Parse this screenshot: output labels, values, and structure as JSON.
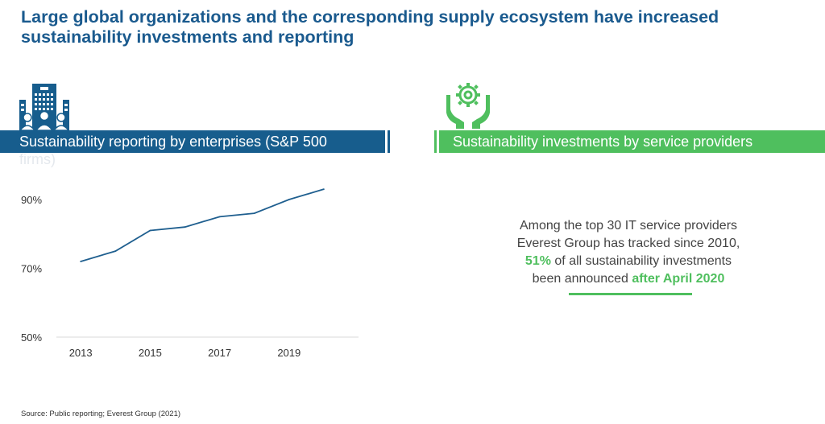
{
  "title": "Large global organizations and the corresponding supply ecosystem have increased sustainability investments and reporting",
  "left_panel": {
    "label": "Sustainability reporting by enterprises (S&P 500",
    "label_overflow": "firms)",
    "icon": "building-people-icon",
    "color": "#175d8d"
  },
  "right_panel": {
    "label": "Sustainability investments by service providers",
    "icon": "hands-gear-icon",
    "color": "#4fbf5e",
    "callout": {
      "line1": "Among the top 30 IT service providers",
      "line2": "Everest Group has tracked since 2010,",
      "highlight_pct": "51%",
      "line3_rest": " of all sustainability investments",
      "line4_pre": "been announced ",
      "highlight_date": "after April 2020"
    }
  },
  "chart_data": {
    "type": "line",
    "title": "",
    "xlabel": "",
    "ylabel": "",
    "x": [
      2013,
      2014,
      2015,
      2016,
      2017,
      2018,
      2019,
      2020
    ],
    "series": [
      {
        "values": [
          72,
          75,
          81,
          82,
          85,
          86,
          90,
          93
        ]
      }
    ],
    "ylim": [
      50,
      90
    ],
    "y_ticks": [
      "50%",
      "70%",
      "90%"
    ],
    "y_tick_values": [
      50,
      70,
      90
    ],
    "x_ticks": [
      "2013",
      "2015",
      "2017",
      "2019"
    ],
    "x_tick_values": [
      2013,
      2015,
      2017,
      2019
    ],
    "grid": false,
    "line_color": "#1f5f8f"
  },
  "source": "Source:  Public reporting; Everest Group (2021)"
}
